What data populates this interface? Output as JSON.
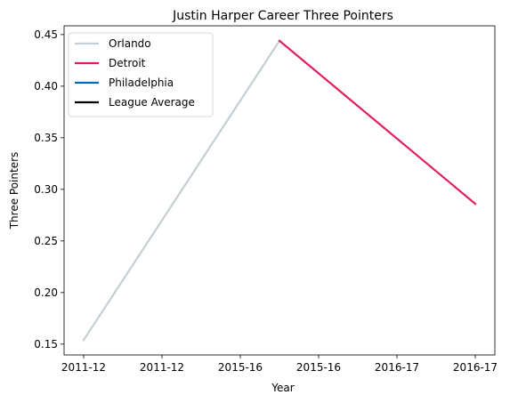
{
  "chart_data": {
    "type": "line",
    "title": "Justin Harper  Career Three Pointers",
    "xlabel": "Year",
    "ylabel": "Three Pointers",
    "x_tick_labels": [
      "2011-12",
      "2011-12",
      "2015-16",
      "2015-16",
      "2016-17",
      "2016-17"
    ],
    "x_tick_values": [
      0.0,
      0.4,
      0.8,
      1.2,
      1.6,
      2.0
    ],
    "xlim": [
      -0.1,
      2.1
    ],
    "y_ticks": [
      0.15,
      0.2,
      0.25,
      0.3,
      0.35,
      0.4,
      0.45
    ],
    "y_tick_labels": [
      "0.15",
      "0.20",
      "0.25",
      "0.30",
      "0.35",
      "0.40",
      "0.45"
    ],
    "ylim": [
      0.1395,
      0.4585
    ],
    "grid": false,
    "legend_position": "top-left",
    "series": [
      {
        "name": "Orlando",
        "color": "#c4ced4",
        "x": [
          0,
          1
        ],
        "y": [
          0.154,
          0.444
        ]
      },
      {
        "name": "Detroit",
        "color": "#e01e5a",
        "x": [
          1,
          2
        ],
        "y": [
          0.444,
          0.286
        ]
      },
      {
        "name": "Philadelphia",
        "color": "#006bb6",
        "x": [],
        "y": []
      },
      {
        "name": "League Average",
        "color": "#000000",
        "x": [],
        "y": []
      }
    ]
  }
}
